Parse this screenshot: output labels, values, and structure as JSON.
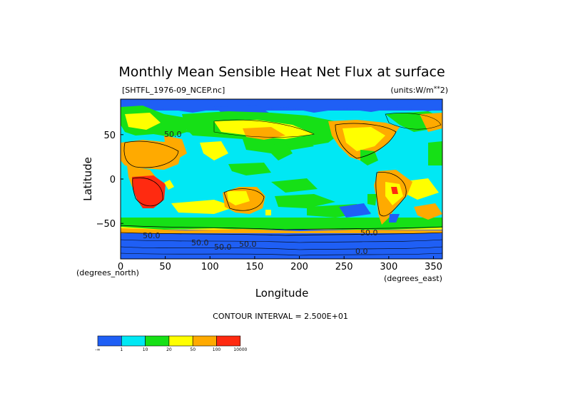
{
  "chart_data": {
    "type": "heatmap",
    "title": "Monthly Mean Sensible Heat Net Flux at surface",
    "dataset": "[SHTFL_1976-09_NCEP.nc]",
    "units": "(units:W/m**2)",
    "xlabel": "Longitude",
    "ylabel": "Latitude",
    "xlim": [
      0,
      360
    ],
    "ylim": [
      -90,
      90
    ],
    "x_ticks": [
      "0",
      "50",
      "100",
      "150",
      "200",
      "250",
      "300",
      "350"
    ],
    "y_ticks": [
      "50",
      "0",
      "−50"
    ],
    "x_unit_left": "(degrees_north)",
    "x_unit_right": "(degrees_east)",
    "contour_interval": "CONTOUR INTERVAL = 2.500E+01",
    "contour_labels": [
      "50.0",
      "50.0",
      "50.0",
      "50.0",
      "50.0",
      "0.0",
      "50.0"
    ],
    "colorbar": {
      "colors": [
        "#1f5ff5",
        "#00e8f4",
        "#16e016",
        "#ffff00",
        "#ffaa00",
        "#ff2a10"
      ],
      "boundaries": [
        "-∞",
        "1",
        "10",
        "20",
        "50",
        "100",
        "10000"
      ]
    }
  }
}
